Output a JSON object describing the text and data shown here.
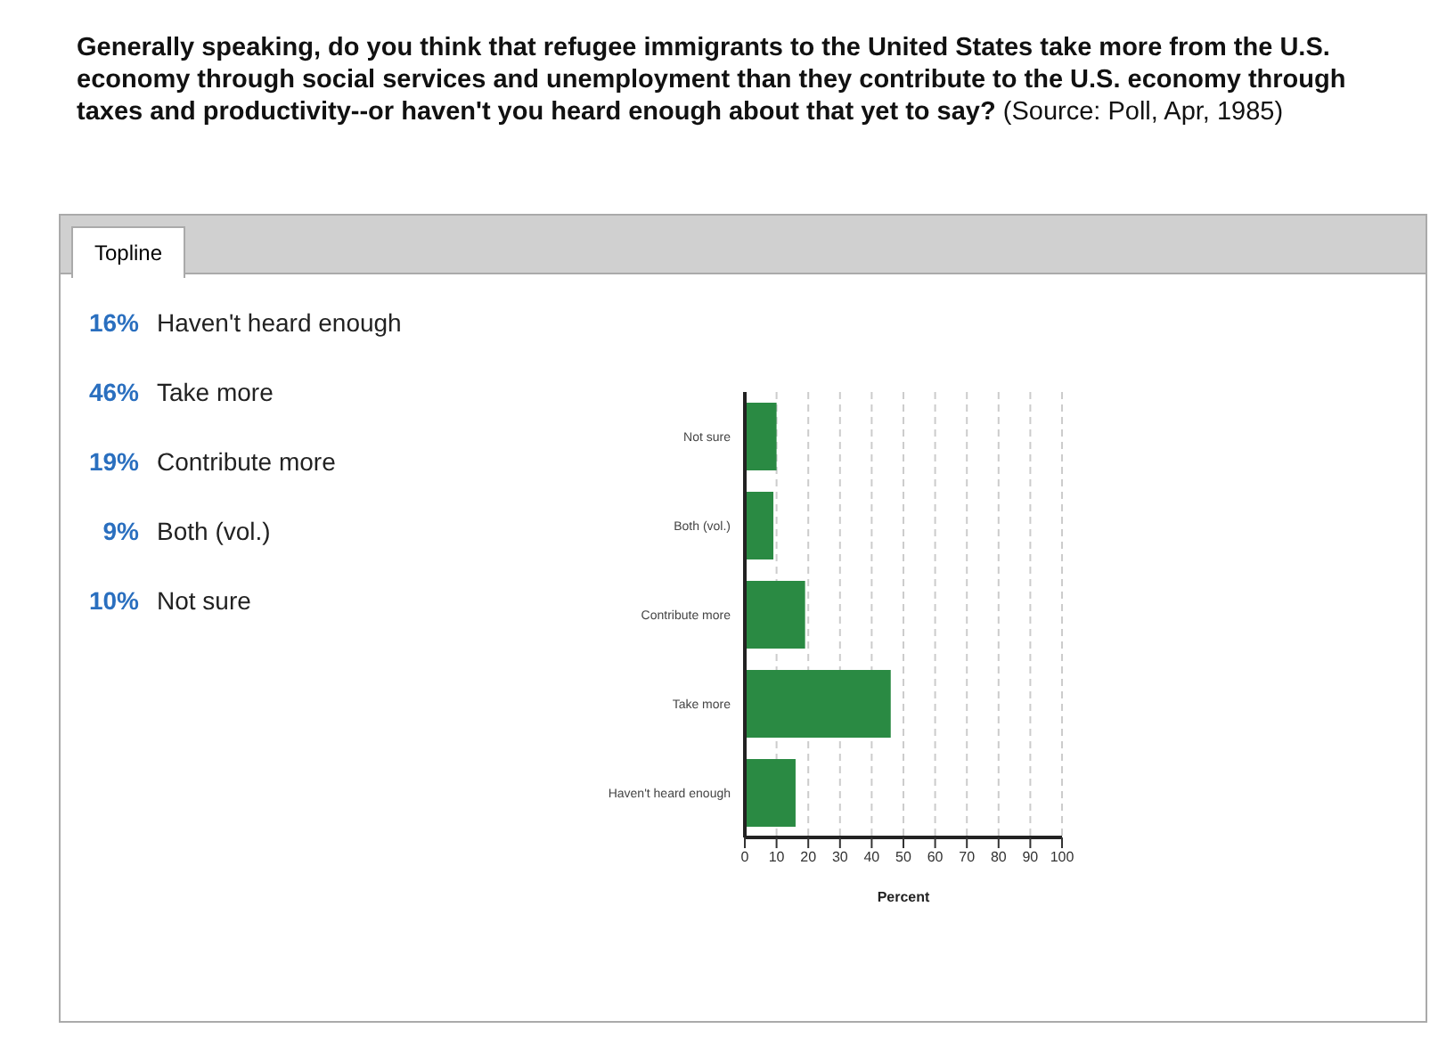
{
  "chart_data": {
    "type": "bar",
    "orientation": "horizontal",
    "title": "Generally speaking, do you think that refugee immigrants to the United States take more from the U.S. economy through social services and unemployment than they contribute to the U.S. economy through taxes and productivity--or haven't you heard enough about that yet to say?",
    "subtitle": "(Source: Poll, Apr, 1985)",
    "categories": [
      "Not sure",
      "Both (vol.)",
      "Contribute more",
      "Take more",
      "Haven't heard enough"
    ],
    "values": [
      10,
      9,
      19,
      46,
      16
    ],
    "color": "#2a8a43",
    "xlim": [
      0,
      100
    ],
    "xticks": [
      0,
      10,
      20,
      30,
      40,
      50,
      60,
      70,
      80,
      90,
      100
    ],
    "xlabel": "Percent",
    "grid": "x",
    "annotations": [
      "Topline",
      "16% Haven't heard enough",
      "46% Take more",
      "19% Contribute more",
      "9% Both (vol.)",
      "10% Not sure"
    ]
  }
}
